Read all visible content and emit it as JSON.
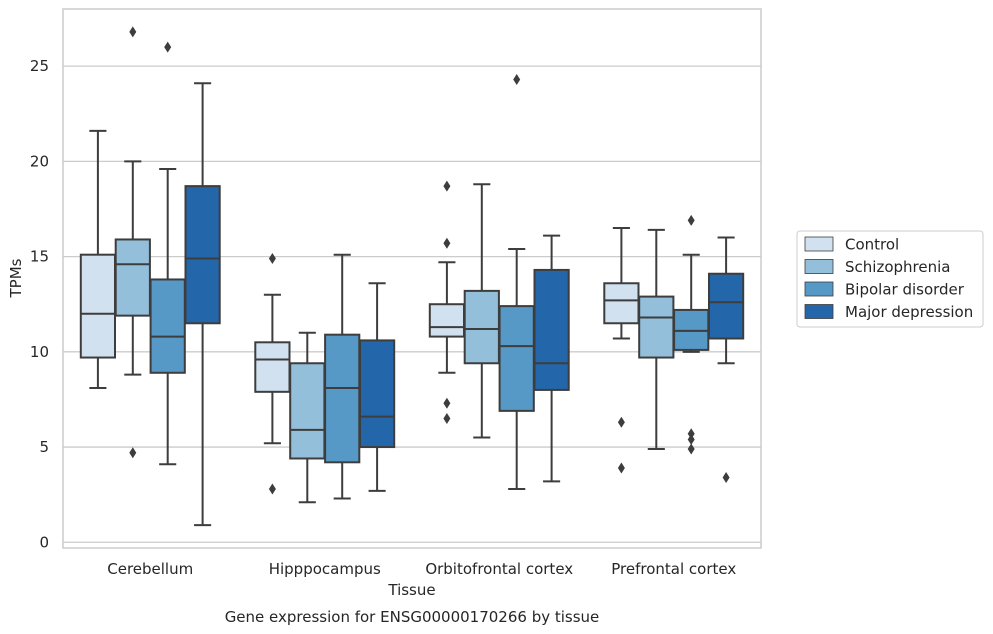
{
  "chart_data": {
    "type": "box",
    "title": "",
    "caption": "Gene expression for ENSG00000170266 by tissue",
    "xlabel": "Tissue",
    "ylabel": "TPMs",
    "ylim": [
      -0.3,
      28.0
    ],
    "yticks": [
      0,
      5,
      10,
      15,
      20,
      25
    ],
    "grid": "horizontal",
    "legend_position": "right",
    "categories": [
      "Cerebellum",
      "Hipppocampus",
      "Orbitofrontal cortex",
      "Prefrontal cortex"
    ],
    "series": [
      {
        "name": "Control",
        "color": "#d1e1f0",
        "boxes": [
          {
            "whisker_low": 8.1,
            "q1": 9.7,
            "median": 12.0,
            "q3": 15.1,
            "whisker_high": 21.6,
            "outliers": []
          },
          {
            "whisker_low": 5.2,
            "q1": 7.9,
            "median": 9.6,
            "q3": 10.5,
            "whisker_high": 13.0,
            "outliers": [
              14.9,
              2.8
            ]
          },
          {
            "whisker_low": 8.9,
            "q1": 10.8,
            "median": 11.3,
            "q3": 12.5,
            "whisker_high": 14.7,
            "outliers": [
              18.7,
              15.7,
              7.3,
              6.5
            ]
          },
          {
            "whisker_low": 10.7,
            "q1": 11.5,
            "median": 12.7,
            "q3": 13.6,
            "whisker_high": 16.5,
            "outliers": [
              6.3,
              3.9
            ]
          }
        ]
      },
      {
        "name": "Schizophrenia",
        "color": "#93bfdb",
        "boxes": [
          {
            "whisker_low": 8.8,
            "q1": 11.9,
            "median": 14.6,
            "q3": 15.9,
            "whisker_high": 20.0,
            "outliers": [
              26.8,
              4.7
            ]
          },
          {
            "whisker_low": 2.1,
            "q1": 4.4,
            "median": 5.9,
            "q3": 9.4,
            "whisker_high": 11.0,
            "outliers": []
          },
          {
            "whisker_low": 5.5,
            "q1": 9.4,
            "median": 11.2,
            "q3": 13.2,
            "whisker_high": 18.8,
            "outliers": []
          },
          {
            "whisker_low": 4.9,
            "q1": 9.7,
            "median": 11.8,
            "q3": 12.9,
            "whisker_high": 16.4,
            "outliers": []
          }
        ]
      },
      {
        "name": "Bipolar disorder",
        "color": "#5698c6",
        "boxes": [
          {
            "whisker_low": 4.1,
            "q1": 8.9,
            "median": 10.8,
            "q3": 13.8,
            "whisker_high": 19.6,
            "outliers": [
              26.0
            ]
          },
          {
            "whisker_low": 2.3,
            "q1": 4.2,
            "median": 8.1,
            "q3": 10.9,
            "whisker_high": 15.1,
            "outliers": []
          },
          {
            "whisker_low": 2.8,
            "q1": 6.9,
            "median": 10.3,
            "q3": 12.4,
            "whisker_high": 15.4,
            "outliers": [
              24.3
            ]
          },
          {
            "whisker_low": 10.0,
            "q1": 10.1,
            "median": 11.1,
            "q3": 12.2,
            "whisker_high": 15.1,
            "outliers": [
              16.9,
              5.7,
              5.4,
              4.9
            ]
          }
        ]
      },
      {
        "name": "Major depression",
        "color": "#2466aa",
        "boxes": [
          {
            "whisker_low": 0.9,
            "q1": 11.5,
            "median": 14.9,
            "q3": 18.7,
            "whisker_high": 24.1,
            "outliers": []
          },
          {
            "whisker_low": 2.7,
            "q1": 5.0,
            "median": 6.6,
            "q3": 10.6,
            "whisker_high": 13.6,
            "outliers": []
          },
          {
            "whisker_low": 3.2,
            "q1": 8.0,
            "median": 9.4,
            "q3": 14.3,
            "whisker_high": 16.1,
            "outliers": []
          },
          {
            "whisker_low": 9.4,
            "q1": 10.7,
            "median": 12.6,
            "q3": 14.1,
            "whisker_high": 16.0,
            "outliers": [
              3.4
            ]
          }
        ]
      }
    ]
  }
}
